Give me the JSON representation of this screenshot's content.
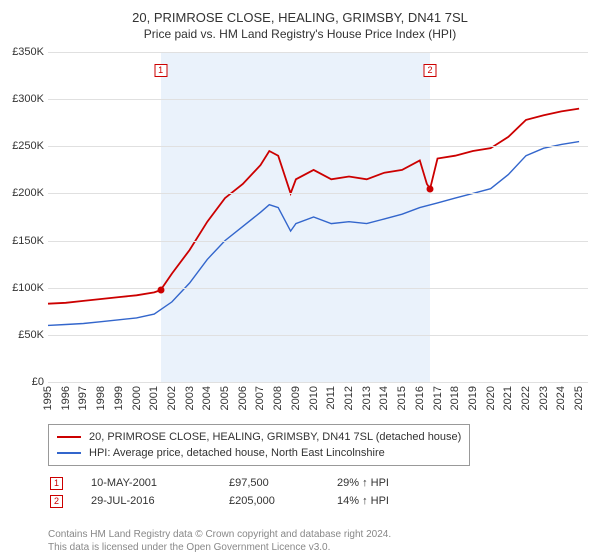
{
  "title": "20, PRIMROSE CLOSE, HEALING, GRIMSBY, DN41 7SL",
  "subtitle": "Price paid vs. HM Land Registry's House Price Index (HPI)",
  "chart": {
    "type": "line",
    "background_color": "#ffffff",
    "grid_color": "#e0e0e0",
    "ylim": [
      0,
      350000
    ],
    "ytick_step": 50000,
    "ytick_labels": [
      "£0",
      "£50K",
      "£100K",
      "£150K",
      "£200K",
      "£250K",
      "£300K",
      "£350K"
    ],
    "xrange": [
      1995,
      2025.5
    ],
    "xticks": [
      1995,
      1996,
      1997,
      1998,
      1999,
      2000,
      2001,
      2002,
      2003,
      2004,
      2005,
      2006,
      2007,
      2008,
      2009,
      2010,
      2011,
      2012,
      2013,
      2014,
      2015,
      2016,
      2017,
      2018,
      2019,
      2020,
      2021,
      2022,
      2023,
      2024,
      2025
    ],
    "shade": {
      "start": 2001.36,
      "end": 2016.58,
      "color": "#eaf2fb"
    },
    "series": [
      {
        "name": "property",
        "label": "20, PRIMROSE CLOSE, HEALING, GRIMSBY, DN41 7SL (detached house)",
        "color": "#cc0000",
        "line_width": 1.8,
        "points": [
          [
            1995,
            83000
          ],
          [
            1996,
            84000
          ],
          [
            1997,
            86000
          ],
          [
            1998,
            88000
          ],
          [
            1999,
            90000
          ],
          [
            2000,
            92000
          ],
          [
            2001,
            95000
          ],
          [
            2001.36,
            97500
          ],
          [
            2002,
            115000
          ],
          [
            2003,
            140000
          ],
          [
            2004,
            170000
          ],
          [
            2005,
            195000
          ],
          [
            2006,
            210000
          ],
          [
            2007,
            230000
          ],
          [
            2007.5,
            245000
          ],
          [
            2008,
            240000
          ],
          [
            2008.7,
            200000
          ],
          [
            2009,
            215000
          ],
          [
            2010,
            225000
          ],
          [
            2011,
            215000
          ],
          [
            2012,
            218000
          ],
          [
            2013,
            215000
          ],
          [
            2014,
            222000
          ],
          [
            2015,
            225000
          ],
          [
            2016,
            235000
          ],
          [
            2016.4,
            210000
          ],
          [
            2016.58,
            205000
          ],
          [
            2017,
            237000
          ],
          [
            2018,
            240000
          ],
          [
            2019,
            245000
          ],
          [
            2020,
            248000
          ],
          [
            2021,
            260000
          ],
          [
            2022,
            278000
          ],
          [
            2023,
            283000
          ],
          [
            2024,
            287000
          ],
          [
            2025,
            290000
          ]
        ]
      },
      {
        "name": "hpi",
        "label": "HPI: Average price, detached house, North East Lincolnshire",
        "color": "#3366cc",
        "line_width": 1.4,
        "points": [
          [
            1995,
            60000
          ],
          [
            1996,
            61000
          ],
          [
            1997,
            62000
          ],
          [
            1998,
            64000
          ],
          [
            1999,
            66000
          ],
          [
            2000,
            68000
          ],
          [
            2001,
            72000
          ],
          [
            2002,
            85000
          ],
          [
            2003,
            105000
          ],
          [
            2004,
            130000
          ],
          [
            2005,
            150000
          ],
          [
            2006,
            165000
          ],
          [
            2007,
            180000
          ],
          [
            2007.5,
            188000
          ],
          [
            2008,
            185000
          ],
          [
            2008.7,
            160000
          ],
          [
            2009,
            168000
          ],
          [
            2010,
            175000
          ],
          [
            2011,
            168000
          ],
          [
            2012,
            170000
          ],
          [
            2013,
            168000
          ],
          [
            2014,
            173000
          ],
          [
            2015,
            178000
          ],
          [
            2016,
            185000
          ],
          [
            2017,
            190000
          ],
          [
            2018,
            195000
          ],
          [
            2019,
            200000
          ],
          [
            2020,
            205000
          ],
          [
            2021,
            220000
          ],
          [
            2022,
            240000
          ],
          [
            2023,
            248000
          ],
          [
            2024,
            252000
          ],
          [
            2025,
            255000
          ]
        ]
      }
    ],
    "markers": [
      {
        "n": "1",
        "x": 2001.36,
        "y": 97500,
        "color": "#cc0000",
        "box_y_top": 12
      },
      {
        "n": "2",
        "x": 2016.58,
        "y": 205000,
        "color": "#cc0000",
        "box_y_top": 12
      }
    ]
  },
  "legend": {
    "series": [
      {
        "color": "#cc0000",
        "label_path": "chart.series.0.label"
      },
      {
        "color": "#3366cc",
        "label_path": "chart.series.1.label"
      }
    ]
  },
  "transactions": [
    {
      "n": "1",
      "color": "#cc0000",
      "date": "10-MAY-2001",
      "price": "£97,500",
      "delta": "29% ↑ HPI"
    },
    {
      "n": "2",
      "color": "#cc0000",
      "date": "29-JUL-2016",
      "price": "£205,000",
      "delta": "14% ↑ HPI"
    }
  ],
  "copyright": {
    "line1": "Contains HM Land Registry data © Crown copyright and database right 2024.",
    "line2": "This data is licensed under the Open Government Licence v3.0."
  }
}
